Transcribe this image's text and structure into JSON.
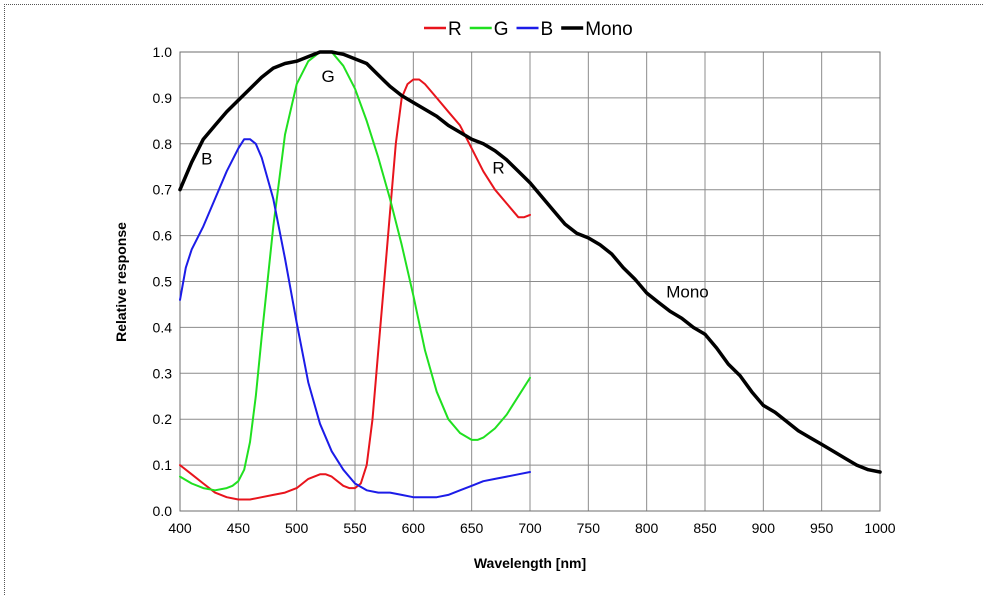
{
  "chart_data": {
    "type": "line",
    "xlabel": "Wavelength [nm]",
    "ylabel": "Relative response",
    "xlim": [
      400,
      1000
    ],
    "ylim": [
      0,
      1.0
    ],
    "xticks": [
      400,
      450,
      500,
      550,
      600,
      650,
      700,
      750,
      800,
      850,
      900,
      950,
      1000
    ],
    "yticks": [
      "0.0",
      "0.1",
      "0.2",
      "0.3",
      "0.4",
      "0.5",
      "0.6",
      "0.7",
      "0.8",
      "0.9",
      "1.0"
    ],
    "grid": true,
    "legend_position": "top-right",
    "series": [
      {
        "name": "R",
        "color": "#e8141c",
        "x": [
          400,
          410,
          420,
          430,
          440,
          450,
          460,
          470,
          480,
          490,
          500,
          510,
          520,
          525,
          530,
          540,
          545,
          550,
          555,
          560,
          565,
          570,
          575,
          580,
          585,
          590,
          595,
          600,
          605,
          610,
          620,
          630,
          640,
          650,
          660,
          670,
          680,
          690,
          695,
          700
        ],
        "y": [
          0.1,
          0.08,
          0.06,
          0.04,
          0.03,
          0.025,
          0.025,
          0.03,
          0.035,
          0.04,
          0.05,
          0.07,
          0.08,
          0.08,
          0.075,
          0.055,
          0.05,
          0.05,
          0.06,
          0.1,
          0.2,
          0.35,
          0.5,
          0.65,
          0.8,
          0.9,
          0.93,
          0.94,
          0.94,
          0.93,
          0.9,
          0.87,
          0.84,
          0.79,
          0.74,
          0.7,
          0.67,
          0.64,
          0.64,
          0.645
        ]
      },
      {
        "name": "G",
        "color": "#20e020",
        "x": [
          400,
          410,
          420,
          430,
          440,
          445,
          450,
          455,
          460,
          465,
          470,
          480,
          490,
          500,
          510,
          520,
          530,
          540,
          550,
          560,
          570,
          580,
          590,
          600,
          610,
          620,
          630,
          640,
          650,
          655,
          660,
          670,
          680,
          690,
          700
        ],
        "y": [
          0.075,
          0.06,
          0.05,
          0.045,
          0.05,
          0.055,
          0.065,
          0.09,
          0.15,
          0.25,
          0.38,
          0.62,
          0.82,
          0.93,
          0.98,
          1.0,
          1.0,
          0.97,
          0.92,
          0.85,
          0.77,
          0.68,
          0.58,
          0.47,
          0.35,
          0.26,
          0.2,
          0.17,
          0.155,
          0.155,
          0.16,
          0.18,
          0.21,
          0.25,
          0.29
        ]
      },
      {
        "name": "B",
        "color": "#1c1ce8",
        "x": [
          400,
          405,
          410,
          420,
          430,
          440,
          450,
          455,
          460,
          465,
          470,
          480,
          490,
          500,
          510,
          520,
          530,
          540,
          550,
          560,
          570,
          580,
          590,
          600,
          610,
          620,
          630,
          640,
          650,
          660,
          670,
          680,
          690,
          700
        ],
        "y": [
          0.46,
          0.53,
          0.57,
          0.62,
          0.68,
          0.74,
          0.79,
          0.81,
          0.81,
          0.8,
          0.77,
          0.68,
          0.55,
          0.41,
          0.28,
          0.19,
          0.13,
          0.09,
          0.06,
          0.045,
          0.04,
          0.04,
          0.035,
          0.03,
          0.03,
          0.03,
          0.035,
          0.045,
          0.055,
          0.065,
          0.07,
          0.075,
          0.08,
          0.085
        ]
      },
      {
        "name": "Mono",
        "color": "#000000",
        "x": [
          400,
          410,
          420,
          430,
          440,
          450,
          460,
          470,
          480,
          490,
          500,
          510,
          520,
          525,
          530,
          540,
          550,
          560,
          570,
          580,
          590,
          600,
          610,
          620,
          630,
          640,
          650,
          660,
          670,
          680,
          690,
          700,
          710,
          720,
          730,
          740,
          750,
          760,
          770,
          780,
          790,
          800,
          810,
          820,
          830,
          840,
          850,
          860,
          870,
          880,
          890,
          900,
          910,
          920,
          930,
          940,
          950,
          960,
          970,
          980,
          990,
          1000
        ],
        "y": [
          0.7,
          0.76,
          0.81,
          0.84,
          0.87,
          0.895,
          0.92,
          0.945,
          0.965,
          0.975,
          0.98,
          0.99,
          1.0,
          1.0,
          1.0,
          0.995,
          0.985,
          0.975,
          0.95,
          0.925,
          0.905,
          0.89,
          0.875,
          0.86,
          0.84,
          0.825,
          0.81,
          0.8,
          0.785,
          0.765,
          0.74,
          0.715,
          0.685,
          0.655,
          0.625,
          0.605,
          0.595,
          0.58,
          0.56,
          0.53,
          0.505,
          0.475,
          0.455,
          0.435,
          0.42,
          0.4,
          0.385,
          0.355,
          0.32,
          0.295,
          0.26,
          0.23,
          0.215,
          0.195,
          0.175,
          0.16,
          0.145,
          0.13,
          0.115,
          0.1,
          0.09,
          0.085
        ]
      }
    ],
    "annotations": [
      {
        "text": "B",
        "x": 423,
        "y": 0.755
      },
      {
        "text": "G",
        "x": 527,
        "y": 0.935
      },
      {
        "text": "R",
        "x": 673,
        "y": 0.735
      },
      {
        "text": "Mono",
        "x": 835,
        "y": 0.465
      }
    ]
  }
}
